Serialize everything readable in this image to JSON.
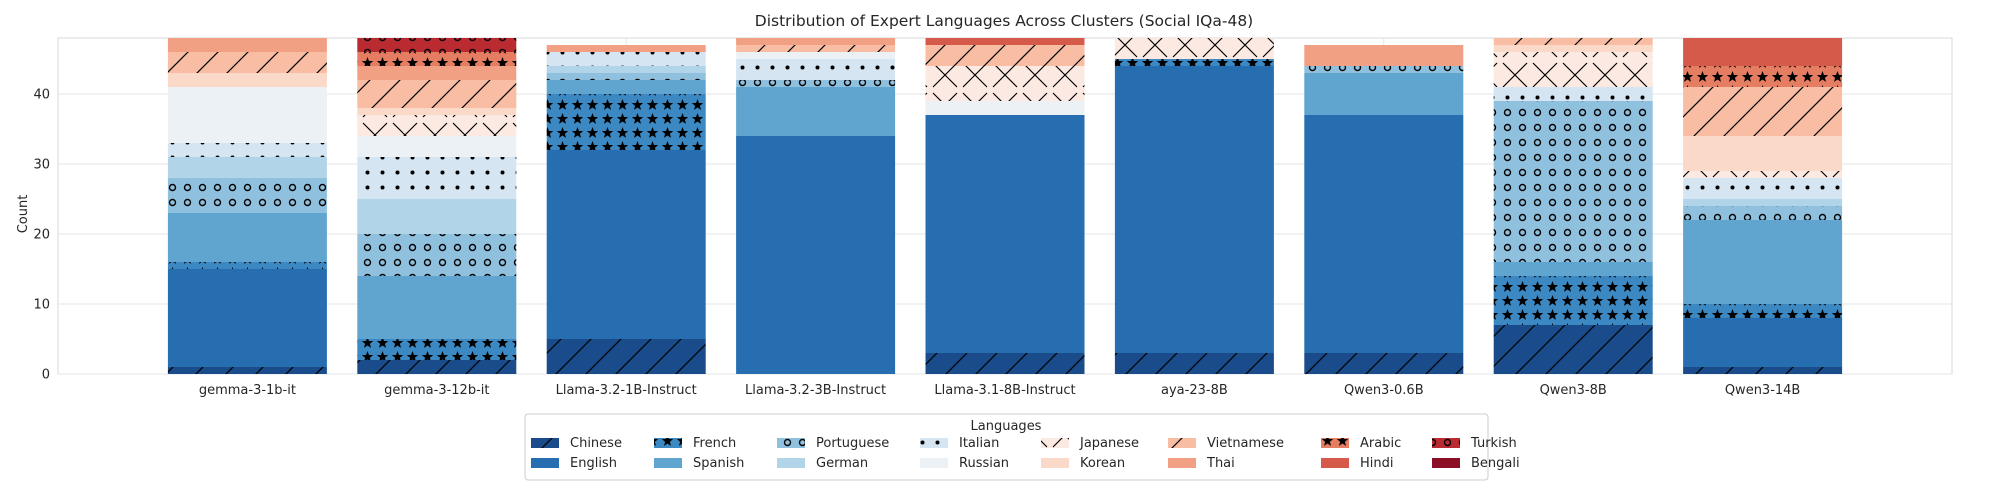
{
  "chart_data": {
    "type": "bar",
    "stacked": true,
    "title": "Distribution of Expert Languages Across Clusters (Social IQa-48)",
    "xlabel": "",
    "ylabel": "Count",
    "ylim": [
      0,
      48
    ],
    "yticks": [
      0,
      10,
      20,
      30,
      40
    ],
    "grid": true,
    "legend_title": "Languages",
    "legend_placement": "bottom-center",
    "categories": [
      "gemma-3-1b-it",
      "gemma-3-12b-it",
      "Llama-3.2-1B-Instruct",
      "Llama-3.2-3B-Instruct",
      "Llama-3.1-8B-Instruct",
      "aya-23-8B",
      "Qwen3-0.6B",
      "Qwen3-8B",
      "Qwen3-14B"
    ],
    "series": [
      {
        "name": "Chinese",
        "color": "#1a4c8b",
        "hatch": "diag",
        "values": [
          1,
          2,
          5,
          0,
          3,
          3,
          3,
          7,
          1
        ]
      },
      {
        "name": "English",
        "color": "#276eb0",
        "hatch": "none",
        "values": [
          14,
          0,
          27,
          34,
          34,
          41,
          34,
          0,
          7
        ]
      },
      {
        "name": "French",
        "color": "#3c88c3",
        "hatch": "star",
        "values": [
          1,
          3,
          8,
          0,
          0,
          1,
          0,
          7,
          2
        ]
      },
      {
        "name": "Spanish",
        "color": "#60a5d0",
        "hatch": "none",
        "values": [
          7,
          9,
          2,
          7,
          0,
          0,
          6,
          2,
          12
        ]
      },
      {
        "name": "Portuguese",
        "color": "#8fc1de",
        "hatch": "circle",
        "values": [
          5,
          6,
          1,
          1,
          0,
          0,
          1,
          23,
          2
        ]
      },
      {
        "name": "German",
        "color": "#b2d4e8",
        "hatch": "none",
        "values": [
          3,
          5,
          1,
          0,
          0,
          0,
          0,
          0,
          1
        ]
      },
      {
        "name": "Italian",
        "color": "#d5e6f2",
        "hatch": "dot",
        "values": [
          2,
          6,
          2,
          3,
          0,
          0,
          0,
          2,
          3
        ]
      },
      {
        "name": "Russian",
        "color": "#ecf1f6",
        "hatch": "none",
        "values": [
          8,
          3,
          0,
          1,
          2,
          0,
          0,
          0,
          0
        ]
      },
      {
        "name": "Japanese",
        "color": "#fbe9e2",
        "hatch": "cross",
        "values": [
          0,
          3,
          0,
          0,
          5,
          3,
          0,
          5,
          1
        ]
      },
      {
        "name": "Korean",
        "color": "#fad9c9",
        "hatch": "none",
        "values": [
          2,
          1,
          0,
          0,
          0,
          0,
          0,
          1,
          5
        ]
      },
      {
        "name": "Vietnamese",
        "color": "#f8bda3",
        "hatch": "diag",
        "values": [
          3,
          4,
          0,
          1,
          3,
          0,
          0,
          1,
          7
        ]
      },
      {
        "name": "Thai",
        "color": "#f2a083",
        "hatch": "none",
        "values": [
          2,
          2,
          1,
          1,
          0,
          0,
          3,
          0,
          0
        ]
      },
      {
        "name": "Arabic",
        "color": "#e47d62",
        "hatch": "star",
        "values": [
          0,
          2,
          0,
          0,
          0,
          0,
          0,
          0,
          3
        ]
      },
      {
        "name": "Hindi",
        "color": "#d55a4a",
        "hatch": "none",
        "values": [
          0,
          0,
          0,
          0,
          1,
          0,
          0,
          0,
          4
        ]
      },
      {
        "name": "Turkish",
        "color": "#b92b31",
        "hatch": "circle",
        "values": [
          0,
          2,
          0,
          0,
          0,
          0,
          0,
          0,
          0
        ]
      },
      {
        "name": "Bengali",
        "color": "#8c0e24",
        "hatch": "none",
        "values": [
          0,
          0,
          0,
          0,
          0,
          0,
          0,
          0,
          0
        ]
      }
    ]
  }
}
